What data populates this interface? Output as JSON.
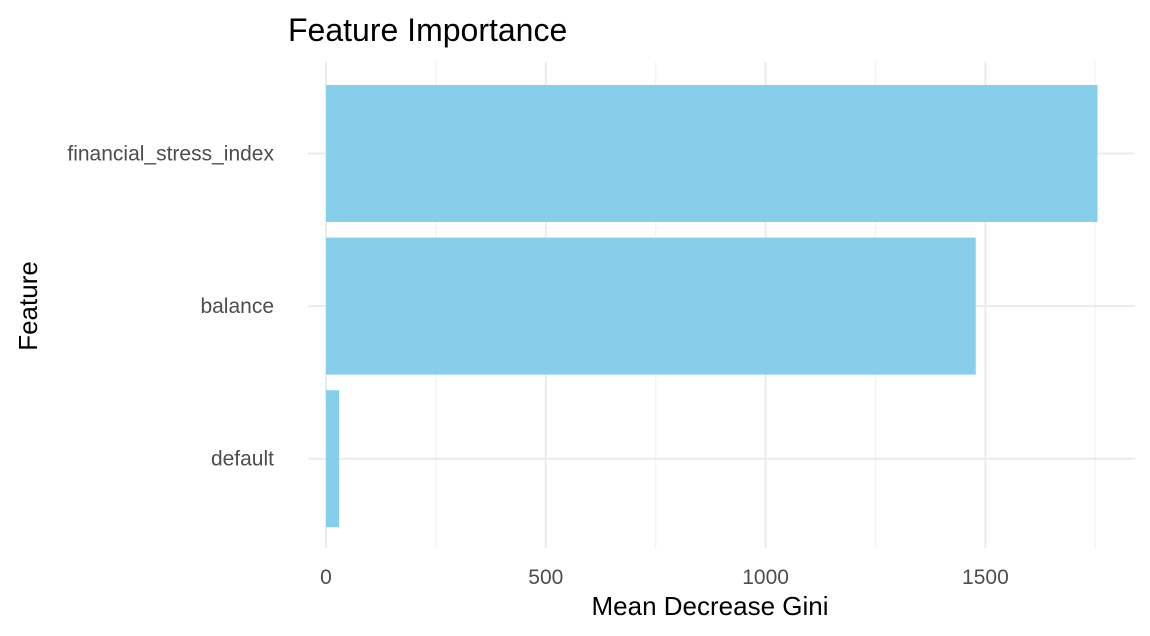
{
  "chart_data": {
    "type": "bar",
    "orientation": "horizontal",
    "title": "Feature Importance",
    "xlabel": "Mean Decrease Gini",
    "ylabel": "Feature",
    "categories": [
      "financial_stress_index",
      "balance",
      "default"
    ],
    "values": [
      1755,
      1478,
      30
    ],
    "xlim": [
      0,
      1840
    ],
    "xticks": [
      0,
      500,
      1000,
      1500
    ],
    "xtick_labels": [
      "0",
      "500",
      "1000",
      "1500"
    ],
    "bar_color": "#87CEEB",
    "grid": true,
    "legend": "none"
  }
}
